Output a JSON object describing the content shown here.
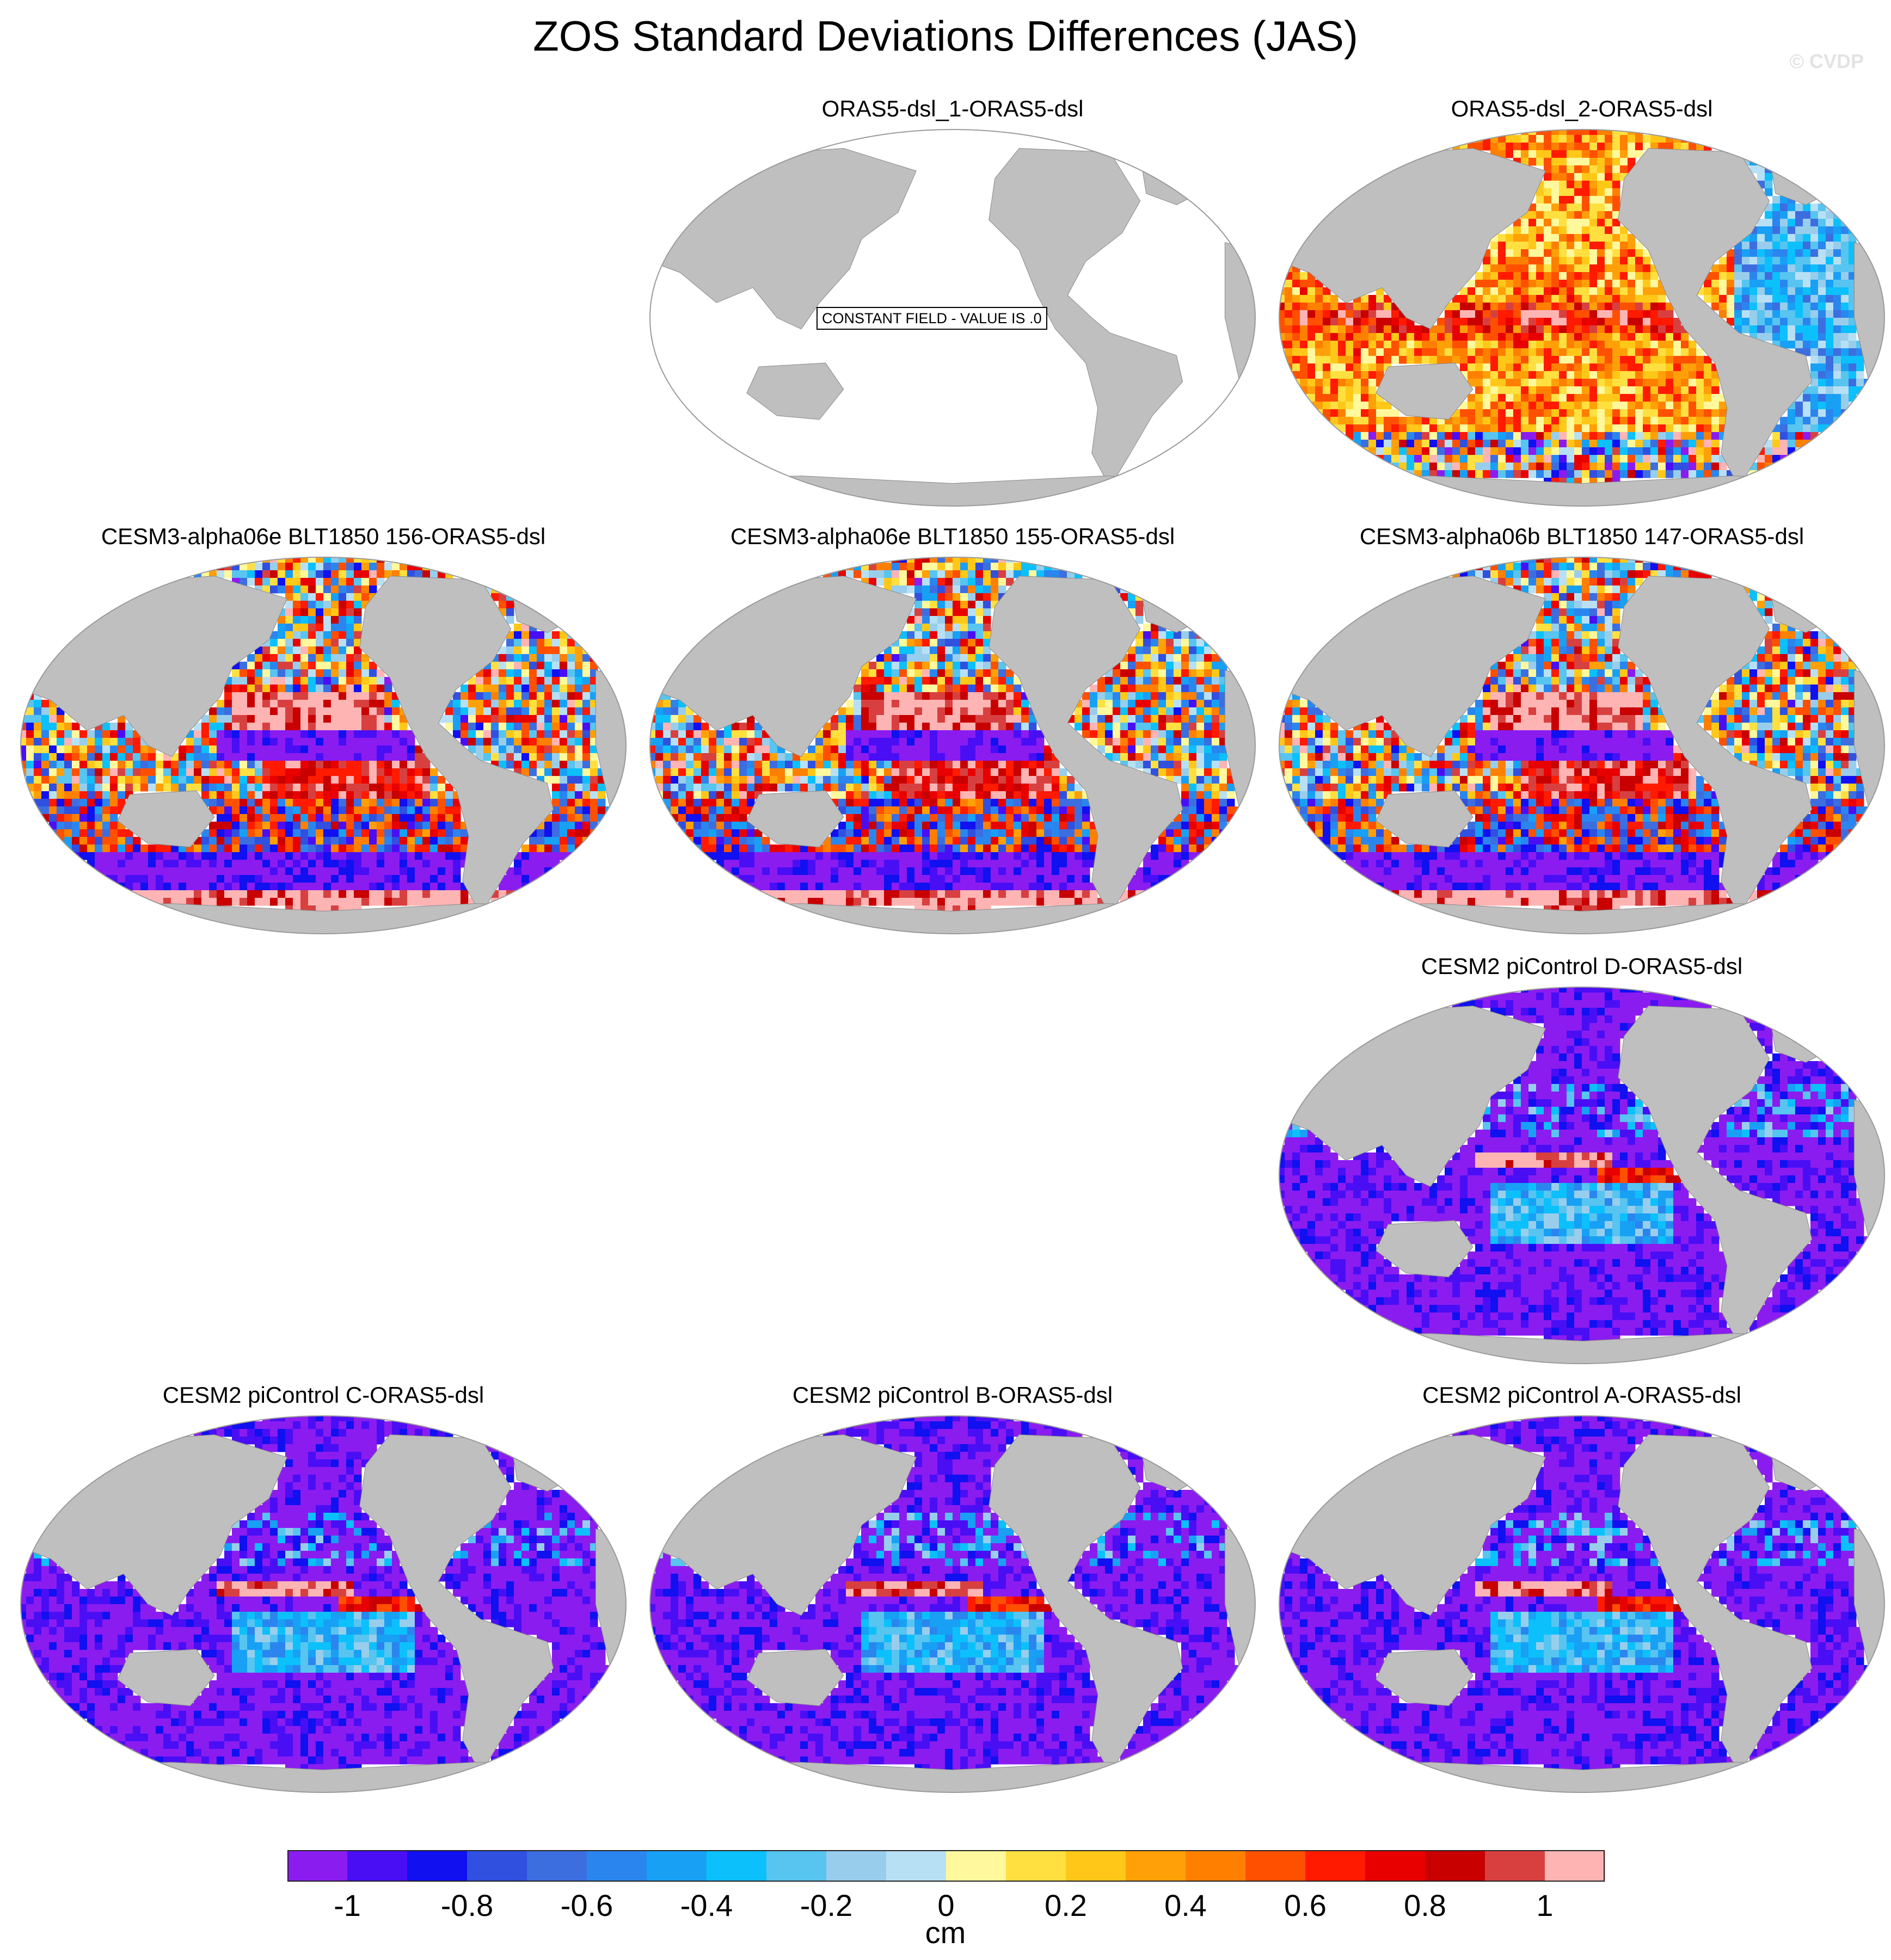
{
  "title": "ZOS Standard Deviations Differences (JAS)",
  "watermark": "© CVDP",
  "panels": [
    {
      "id": "p1",
      "title": "ORAS5-dsl_1-ORAS5-dsl",
      "field": "constant",
      "note": "CONSTANT FIELD - VALUE IS .0"
    },
    {
      "id": "p2",
      "title": "ORAS5-dsl_2-ORAS5-dsl",
      "field": "mixed-positive"
    },
    {
      "id": "p3",
      "title": "CESM3-alpha06e BLT1850 156-ORAS5-dsl",
      "field": "strong-dipole"
    },
    {
      "id": "p4",
      "title": "CESM3-alpha06e BLT1850 155-ORAS5-dsl",
      "field": "strong-dipole"
    },
    {
      "id": "p5",
      "title": "CESM3-alpha06b BLT1850 147-ORAS5-dsl",
      "field": "strong-dipole"
    },
    {
      "id": "p6",
      "title": "CESM2 piControl D-ORAS5-dsl",
      "field": "mostly-negative"
    },
    {
      "id": "p7",
      "title": "CESM2 piControl C-ORAS5-dsl",
      "field": "mostly-negative"
    },
    {
      "id": "p8",
      "title": "CESM2 piControl B-ORAS5-dsl",
      "field": "mostly-negative"
    },
    {
      "id": "p9",
      "title": "CESM2 piControl A-ORAS5-dsl",
      "field": "mostly-negative"
    }
  ],
  "colorbar": {
    "unit": "cm",
    "colors": [
      "#8a1cf0",
      "#4a0ef5",
      "#1010f0",
      "#3050e0",
      "#3c6ee0",
      "#2a86ee",
      "#18a0f5",
      "#0cc0fc",
      "#58c4f0",
      "#98ceec",
      "#b8e0f4",
      "#fff89c",
      "#ffe040",
      "#ffc818",
      "#ffa008",
      "#ff8000",
      "#ff5000",
      "#ff1a00",
      "#e80000",
      "#c80000",
      "#d84040",
      "#ffb4b4"
    ],
    "tick_labels": [
      "-1",
      "-0.8",
      "-0.6",
      "-0.4",
      "-0.2",
      "0",
      "0.2",
      "0.4",
      "0.6",
      "0.8",
      "1"
    ]
  }
}
